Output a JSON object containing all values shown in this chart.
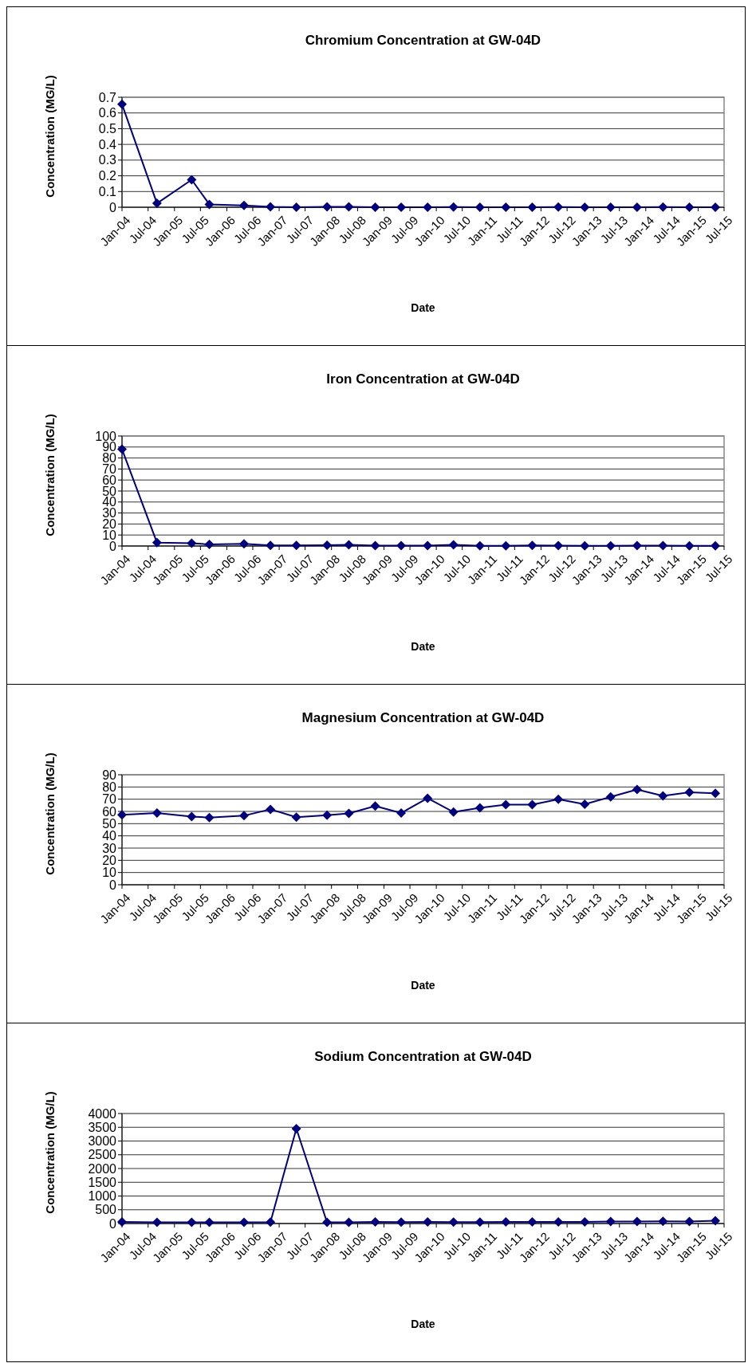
{
  "chart_data": [
    {
      "type": "line",
      "title": "Chromium Concentration at GW-04D",
      "xlabel": "Date",
      "ylabel": "Concentration (MG/L)",
      "x": [
        "2004-01",
        "2004-09",
        "2005-05",
        "2005-09",
        "2006-05",
        "2006-11",
        "2007-05",
        "2007-12",
        "2008-05",
        "2008-11",
        "2009-05",
        "2009-11",
        "2010-05",
        "2010-11",
        "2011-05",
        "2011-11",
        "2012-05",
        "2012-11",
        "2013-05",
        "2013-11",
        "2014-05",
        "2014-11",
        "2015-05"
      ],
      "series": [
        {
          "color": "#000080",
          "values": [
            0.655,
            0.025,
            0.175,
            0.018,
            0.012,
            0.003,
            0,
            0.003,
            0.003,
            0,
            0,
            0,
            0.001,
            0,
            0,
            0,
            0.001,
            0,
            0,
            0,
            0.001,
            0,
            0
          ]
        }
      ],
      "xlim": [
        "2004-01",
        "2015-07"
      ],
      "xticks": [
        {
          "value": "2004-01",
          "label": "Jan-04"
        },
        {
          "value": "2004-07",
          "label": "Jul-04"
        },
        {
          "value": "2005-01",
          "label": "Jan-05"
        },
        {
          "value": "2005-07",
          "label": "Jul-05"
        },
        {
          "value": "2006-01",
          "label": "Jan-06"
        },
        {
          "value": "2006-07",
          "label": "Jul-06"
        },
        {
          "value": "2007-01",
          "label": "Jan-07"
        },
        {
          "value": "2007-07",
          "label": "Jul-07"
        },
        {
          "value": "2008-01",
          "label": "Jan-08"
        },
        {
          "value": "2008-07",
          "label": "Jul-08"
        },
        {
          "value": "2009-01",
          "label": "Jan-09"
        },
        {
          "value": "2009-07",
          "label": "Jul-09"
        },
        {
          "value": "2010-01",
          "label": "Jan-10"
        },
        {
          "value": "2010-07",
          "label": "Jul-10"
        },
        {
          "value": "2011-01",
          "label": "Jan-11"
        },
        {
          "value": "2011-07",
          "label": "Jul-11"
        },
        {
          "value": "2012-01",
          "label": "Jan-12"
        },
        {
          "value": "2012-07",
          "label": "Jul-12"
        },
        {
          "value": "2013-01",
          "label": "Jan-13"
        },
        {
          "value": "2013-07",
          "label": "Jul-13"
        },
        {
          "value": "2014-01",
          "label": "Jan-14"
        },
        {
          "value": "2014-07",
          "label": "Jul-14"
        },
        {
          "value": "2015-01",
          "label": "Jan-15"
        },
        {
          "value": "2015-07",
          "label": "Jul-15"
        }
      ],
      "ylim": [
        0,
        0.7
      ],
      "yticks": [
        0,
        0.1,
        0.2,
        0.3,
        0.4,
        0.5,
        0.6,
        0.7
      ],
      "grid": "y",
      "marker": "diamond",
      "line_style": "solid"
    },
    {
      "type": "line",
      "title": "Iron Concentration at GW-04D",
      "xlabel": "Date",
      "ylabel": "Concentration (MG/L)",
      "x": [
        "2004-01",
        "2004-09",
        "2005-05",
        "2005-09",
        "2006-05",
        "2006-11",
        "2007-05",
        "2007-12",
        "2008-05",
        "2008-11",
        "2009-05",
        "2009-11",
        "2010-05",
        "2010-11",
        "2011-05",
        "2011-11",
        "2012-05",
        "2012-11",
        "2013-05",
        "2013-11",
        "2014-05",
        "2014-11",
        "2015-05"
      ],
      "series": [
        {
          "color": "#000080",
          "values": [
            88,
            3,
            2.5,
            1.5,
            2,
            0.5,
            0.5,
            0.8,
            1,
            0.3,
            0.3,
            0.3,
            1,
            0.2,
            0.2,
            0.6,
            0.3,
            0.2,
            0.2,
            0.3,
            0.4,
            0.2,
            0.2
          ]
        }
      ],
      "xlim": [
        "2004-01",
        "2015-07"
      ],
      "xticks": [
        {
          "value": "2004-01",
          "label": "Jan-04"
        },
        {
          "value": "2004-07",
          "label": "Jul-04"
        },
        {
          "value": "2005-01",
          "label": "Jan-05"
        },
        {
          "value": "2005-07",
          "label": "Jul-05"
        },
        {
          "value": "2006-01",
          "label": "Jan-06"
        },
        {
          "value": "2006-07",
          "label": "Jul-06"
        },
        {
          "value": "2007-01",
          "label": "Jan-07"
        },
        {
          "value": "2007-07",
          "label": "Jul-07"
        },
        {
          "value": "2008-01",
          "label": "Jan-08"
        },
        {
          "value": "2008-07",
          "label": "Jul-08"
        },
        {
          "value": "2009-01",
          "label": "Jan-09"
        },
        {
          "value": "2009-07",
          "label": "Jul-09"
        },
        {
          "value": "2010-01",
          "label": "Jan-10"
        },
        {
          "value": "2010-07",
          "label": "Jul-10"
        },
        {
          "value": "2011-01",
          "label": "Jan-11"
        },
        {
          "value": "2011-07",
          "label": "Jul-11"
        },
        {
          "value": "2012-01",
          "label": "Jan-12"
        },
        {
          "value": "2012-07",
          "label": "Jul-12"
        },
        {
          "value": "2013-01",
          "label": "Jan-13"
        },
        {
          "value": "2013-07",
          "label": "Jul-13"
        },
        {
          "value": "2014-01",
          "label": "Jan-14"
        },
        {
          "value": "2014-07",
          "label": "Jul-14"
        },
        {
          "value": "2015-01",
          "label": "Jan-15"
        },
        {
          "value": "2015-07",
          "label": "Jul-15"
        }
      ],
      "ylim": [
        0,
        100
      ],
      "yticks": [
        0,
        10,
        20,
        30,
        40,
        50,
        60,
        70,
        80,
        90,
        100
      ],
      "grid": "y",
      "marker": "diamond",
      "line_style": "solid"
    },
    {
      "type": "line",
      "title": "Magnesium Concentration at GW-04D",
      "xlabel": "Date",
      "ylabel": "Concentration (MG/L)",
      "x": [
        "2004-01",
        "2004-09",
        "2005-05",
        "2005-09",
        "2006-05",
        "2006-11",
        "2007-05",
        "2007-12",
        "2008-05",
        "2008-11",
        "2009-05",
        "2009-11",
        "2010-05",
        "2010-11",
        "2011-05",
        "2011-11",
        "2012-05",
        "2012-11",
        "2013-05",
        "2013-11",
        "2014-05",
        "2014-11",
        "2015-05"
      ],
      "series": [
        {
          "color": "#000080",
          "values": [
            57.2,
            58.7,
            55.7,
            55,
            56.5,
            61.7,
            55.3,
            56.9,
            58.4,
            64.4,
            58.7,
            70.8,
            59.5,
            62.9,
            65.5,
            65.5,
            70,
            65.9,
            71.9,
            77.9,
            72.7,
            75.7,
            74.9
          ]
        }
      ],
      "xlim": [
        "2004-01",
        "2015-07"
      ],
      "xticks": [
        {
          "value": "2004-01",
          "label": "Jan-04"
        },
        {
          "value": "2004-07",
          "label": "Jul-04"
        },
        {
          "value": "2005-01",
          "label": "Jan-05"
        },
        {
          "value": "2005-07",
          "label": "Jul-05"
        },
        {
          "value": "2006-01",
          "label": "Jan-06"
        },
        {
          "value": "2006-07",
          "label": "Jul-06"
        },
        {
          "value": "2007-01",
          "label": "Jan-07"
        },
        {
          "value": "2007-07",
          "label": "Jul-07"
        },
        {
          "value": "2008-01",
          "label": "Jan-08"
        },
        {
          "value": "2008-07",
          "label": "Jul-08"
        },
        {
          "value": "2009-01",
          "label": "Jan-09"
        },
        {
          "value": "2009-07",
          "label": "Jul-09"
        },
        {
          "value": "2010-01",
          "label": "Jan-10"
        },
        {
          "value": "2010-07",
          "label": "Jul-10"
        },
        {
          "value": "2011-01",
          "label": "Jan-11"
        },
        {
          "value": "2011-07",
          "label": "Jul-11"
        },
        {
          "value": "2012-01",
          "label": "Jan-12"
        },
        {
          "value": "2012-07",
          "label": "Jul-12"
        },
        {
          "value": "2013-01",
          "label": "Jan-13"
        },
        {
          "value": "2013-07",
          "label": "Jul-13"
        },
        {
          "value": "2014-01",
          "label": "Jan-14"
        },
        {
          "value": "2014-07",
          "label": "Jul-14"
        },
        {
          "value": "2015-01",
          "label": "Jan-15"
        },
        {
          "value": "2015-07",
          "label": "Jul-15"
        }
      ],
      "ylim": [
        0,
        90
      ],
      "yticks": [
        0,
        10,
        20,
        30,
        40,
        50,
        60,
        70,
        80,
        90
      ],
      "grid": "y",
      "marker": "diamond",
      "line_style": "solid"
    },
    {
      "type": "line",
      "title": "Sodium Concentration at GW-04D",
      "xlabel": "Date",
      "ylabel": "Concentration (MG/L)",
      "x": [
        "2004-01",
        "2004-09",
        "2005-05",
        "2005-09",
        "2006-05",
        "2006-11",
        "2007-05",
        "2007-12",
        "2008-05",
        "2008-11",
        "2009-05",
        "2009-11",
        "2010-05",
        "2010-11",
        "2011-05",
        "2011-11",
        "2012-05",
        "2012-11",
        "2013-05",
        "2013-11",
        "2014-05",
        "2014-11",
        "2015-05"
      ],
      "series": [
        {
          "color": "#000080",
          "values": [
            60,
            40,
            40,
            40,
            40,
            50,
            3450,
            40,
            40,
            60,
            50,
            60,
            50,
            50,
            60,
            60,
            60,
            60,
            70,
            70,
            80,
            70,
            100
          ]
        }
      ],
      "xlim": [
        "2004-01",
        "2015-07"
      ],
      "xticks": [
        {
          "value": "2004-01",
          "label": "Jan-04"
        },
        {
          "value": "2004-07",
          "label": "Jul-04"
        },
        {
          "value": "2005-01",
          "label": "Jan-05"
        },
        {
          "value": "2005-07",
          "label": "Jul-05"
        },
        {
          "value": "2006-01",
          "label": "Jan-06"
        },
        {
          "value": "2006-07",
          "label": "Jul-06"
        },
        {
          "value": "2007-01",
          "label": "Jan-07"
        },
        {
          "value": "2007-07",
          "label": "Jul-07"
        },
        {
          "value": "2008-01",
          "label": "Jan-08"
        },
        {
          "value": "2008-07",
          "label": "Jul-08"
        },
        {
          "value": "2009-01",
          "label": "Jan-09"
        },
        {
          "value": "2009-07",
          "label": "Jul-09"
        },
        {
          "value": "2010-01",
          "label": "Jan-10"
        },
        {
          "value": "2010-07",
          "label": "Jul-10"
        },
        {
          "value": "2011-01",
          "label": "Jan-11"
        },
        {
          "value": "2011-07",
          "label": "Jul-11"
        },
        {
          "value": "2012-01",
          "label": "Jan-12"
        },
        {
          "value": "2012-07",
          "label": "Jul-12"
        },
        {
          "value": "2013-01",
          "label": "Jan-13"
        },
        {
          "value": "2013-07",
          "label": "Jul-13"
        },
        {
          "value": "2014-01",
          "label": "Jan-14"
        },
        {
          "value": "2014-07",
          "label": "Jul-14"
        },
        {
          "value": "2015-01",
          "label": "Jan-15"
        },
        {
          "value": "2015-07",
          "label": "Jul-15"
        }
      ],
      "ylim": [
        0,
        4000
      ],
      "yticks": [
        0,
        500,
        1000,
        1500,
        2000,
        2500,
        3000,
        3500,
        4000
      ],
      "grid": "y",
      "marker": "diamond",
      "line_style": "solid"
    }
  ]
}
